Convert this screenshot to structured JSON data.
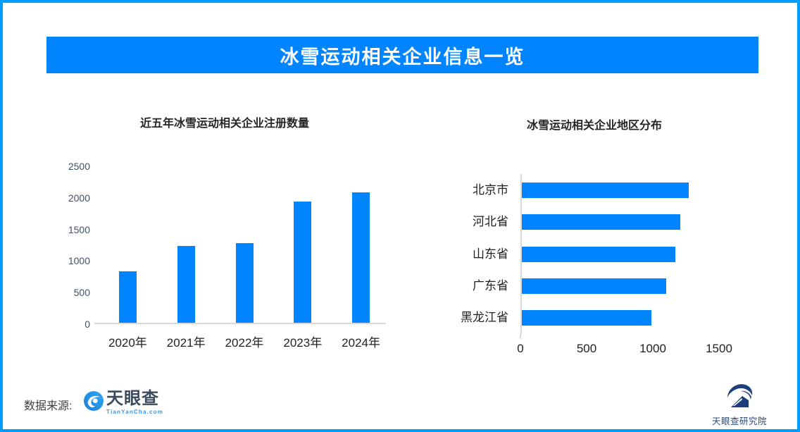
{
  "banner": {
    "title": "冰雪运动相关企业信息一览"
  },
  "colors": {
    "frame_border": "#009DFF",
    "banner_bg": "#0084FF",
    "bar_blue": "#0084FF",
    "axis_gray": "#D9D9D9"
  },
  "chart_data": [
    {
      "type": "bar",
      "orientation": "vertical",
      "title": "近五年冰雪运动相关企业注册数量",
      "categories": [
        "2020年",
        "2021年",
        "2022年",
        "2023年",
        "2024年"
      ],
      "values": [
        820,
        1220,
        1260,
        1915,
        2060
      ],
      "ylabel": "",
      "xlabel": "",
      "ylim": [
        0,
        2500
      ],
      "yticks": [
        0,
        500,
        1000,
        1500,
        2000,
        2500
      ],
      "grid": false,
      "bar_color": "#0084FF"
    },
    {
      "type": "bar",
      "orientation": "horizontal",
      "title": "冰雪运动相关企业地区分布",
      "categories": [
        "北京市",
        "河北省",
        "山东省",
        "广东省",
        "黑龙江省"
      ],
      "values": [
        1260,
        1200,
        1160,
        1090,
        980
      ],
      "ylabel": "",
      "xlabel": "",
      "xlim": [
        0,
        1650
      ],
      "xticks": [
        0,
        500,
        1000,
        1500
      ],
      "grid": false,
      "bar_color": "#0084FF"
    }
  ],
  "footer": {
    "source_label": "数据来源:",
    "tianyancha": {
      "name": "天眼查",
      "domain": "TianYanCha.com"
    },
    "research": {
      "name": "天眼查研究院"
    }
  }
}
